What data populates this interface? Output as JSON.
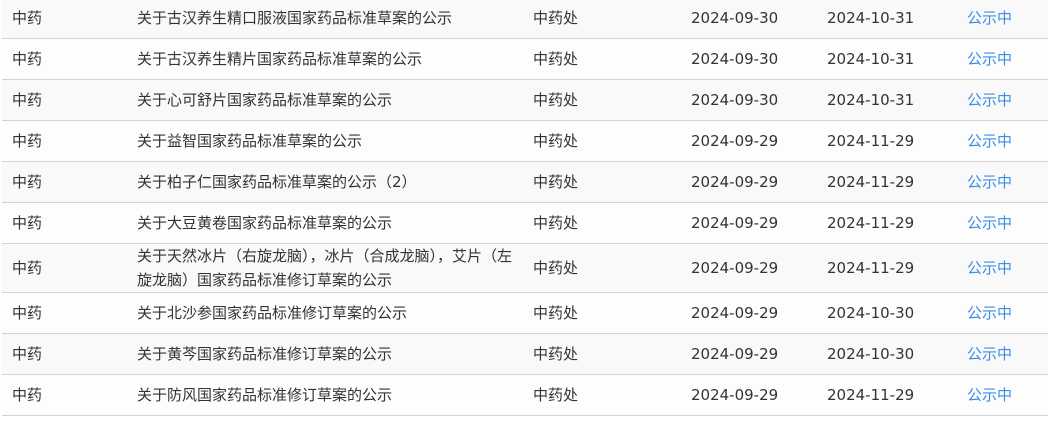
{
  "accent_color": "#3a8ee6",
  "rows": [
    {
      "category": "中药",
      "title": "关于古汉养生精口服液国家药品标准草案的公示",
      "dept": "中药处",
      "start": "2024-09-30",
      "end": "2024-10-31",
      "status": "公示中"
    },
    {
      "category": "中药",
      "title": "关于古汉养生精片国家药品标准草案的公示",
      "dept": "中药处",
      "start": "2024-09-30",
      "end": "2024-10-31",
      "status": "公示中"
    },
    {
      "category": "中药",
      "title": "关于心可舒片国家药品标准草案的公示",
      "dept": "中药处",
      "start": "2024-09-30",
      "end": "2024-10-31",
      "status": "公示中"
    },
    {
      "category": "中药",
      "title": "关于益智国家药品标准草案的公示",
      "dept": "中药处",
      "start": "2024-09-29",
      "end": "2024-11-29",
      "status": "公示中"
    },
    {
      "category": "中药",
      "title": "关于柏子仁国家药品标准草案的公示（2）",
      "dept": "中药处",
      "start": "2024-09-29",
      "end": "2024-11-29",
      "status": "公示中"
    },
    {
      "category": "中药",
      "title": "关于大豆黄卷国家药品标准草案的公示",
      "dept": "中药处",
      "start": "2024-09-29",
      "end": "2024-11-29",
      "status": "公示中"
    },
    {
      "category": "中药",
      "title": "关于天然冰片（右旋龙脑），冰片（合成龙脑），艾片（左旋龙脑）国家药品标准修订草案的公示",
      "dept": "中药处",
      "start": "2024-09-29",
      "end": "2024-11-29",
      "status": "公示中"
    },
    {
      "category": "中药",
      "title": "关于北沙参国家药品标准修订草案的公示",
      "dept": "中药处",
      "start": "2024-09-29",
      "end": "2024-10-30",
      "status": "公示中"
    },
    {
      "category": "中药",
      "title": "关于黄芩国家药品标准修订草案的公示",
      "dept": "中药处",
      "start": "2024-09-29",
      "end": "2024-10-30",
      "status": "公示中"
    },
    {
      "category": "中药",
      "title": "关于防风国家药品标准修订草案的公示",
      "dept": "中药处",
      "start": "2024-09-29",
      "end": "2024-11-29",
      "status": "公示中"
    }
  ]
}
